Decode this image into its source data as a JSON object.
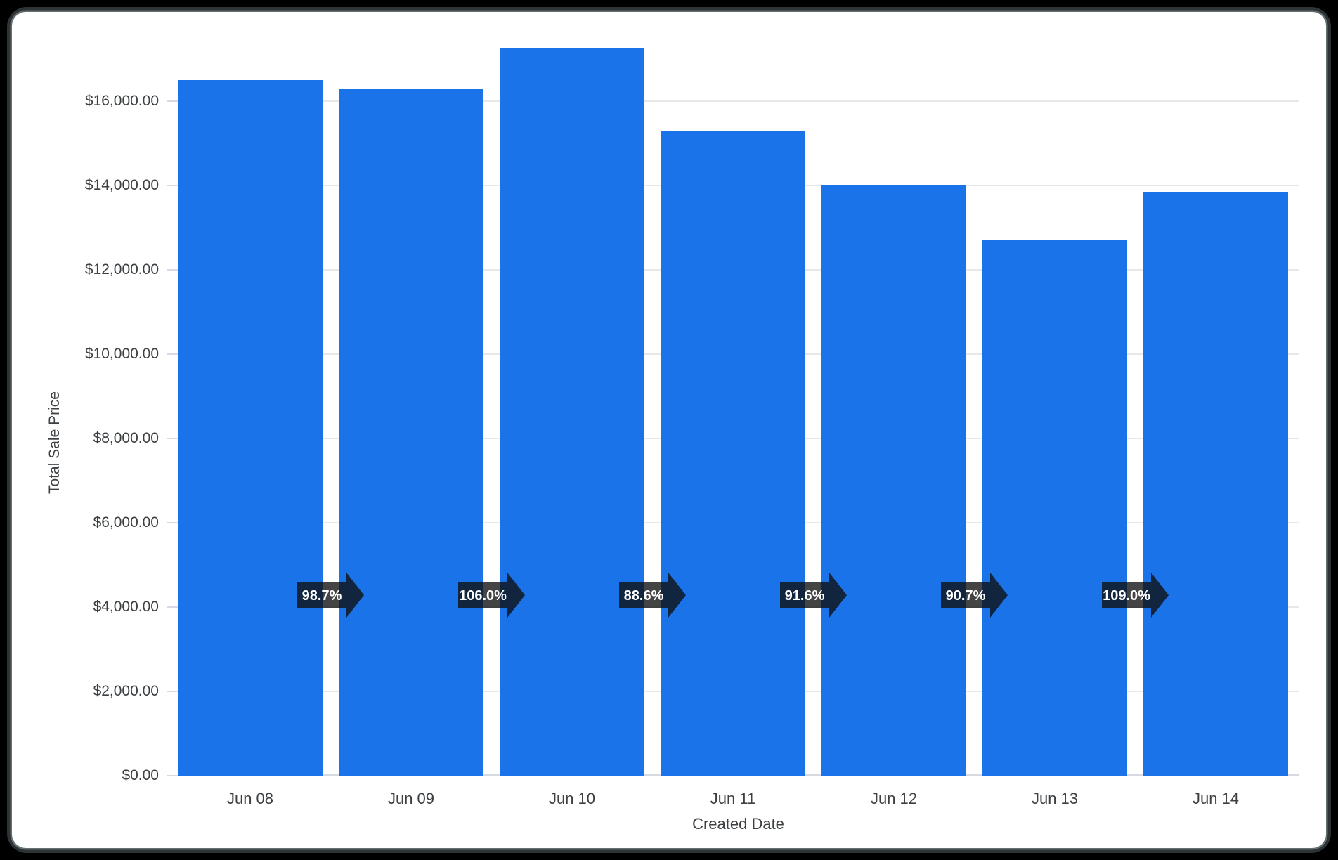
{
  "colors": {
    "page_bg": "#000000",
    "frame": "#2E3436",
    "edge_highlight": "#667073",
    "card_bg": "#FFFFFF",
    "bar": "#1A73E8",
    "grid": "#E8E8E8",
    "axis_line": "#D5DAE2",
    "text": "#3C4043",
    "badge_bg": "rgba(16,16,16,0.78)",
    "badge_text": "#FFFFFF"
  },
  "chart_data": {
    "type": "bar",
    "xlabel": "Created Date",
    "ylabel": "Total Sale Price",
    "categories": [
      "Jun 08",
      "Jun 09",
      "Jun 10",
      "Jun 11",
      "Jun 12",
      "Jun 13",
      "Jun 14"
    ],
    "values": [
      16500,
      16286,
      17263,
      15295,
      14010,
      12707,
      13851
    ],
    "growth_labels": [
      "98.7%",
      "106.0%",
      "88.6%",
      "91.6%",
      "90.7%",
      "109.0%"
    ],
    "y_ticks": [
      "$0.00",
      "$2,000.00",
      "$4,000.00",
      "$6,000.00",
      "$8,000.00",
      "$10,000.00",
      "$12,000.00",
      "$14,000.00",
      "$16,000.00"
    ],
    "y_tick_step": 2000,
    "ylim": [
      0,
      17400
    ],
    "grid": true,
    "legend": "none"
  }
}
